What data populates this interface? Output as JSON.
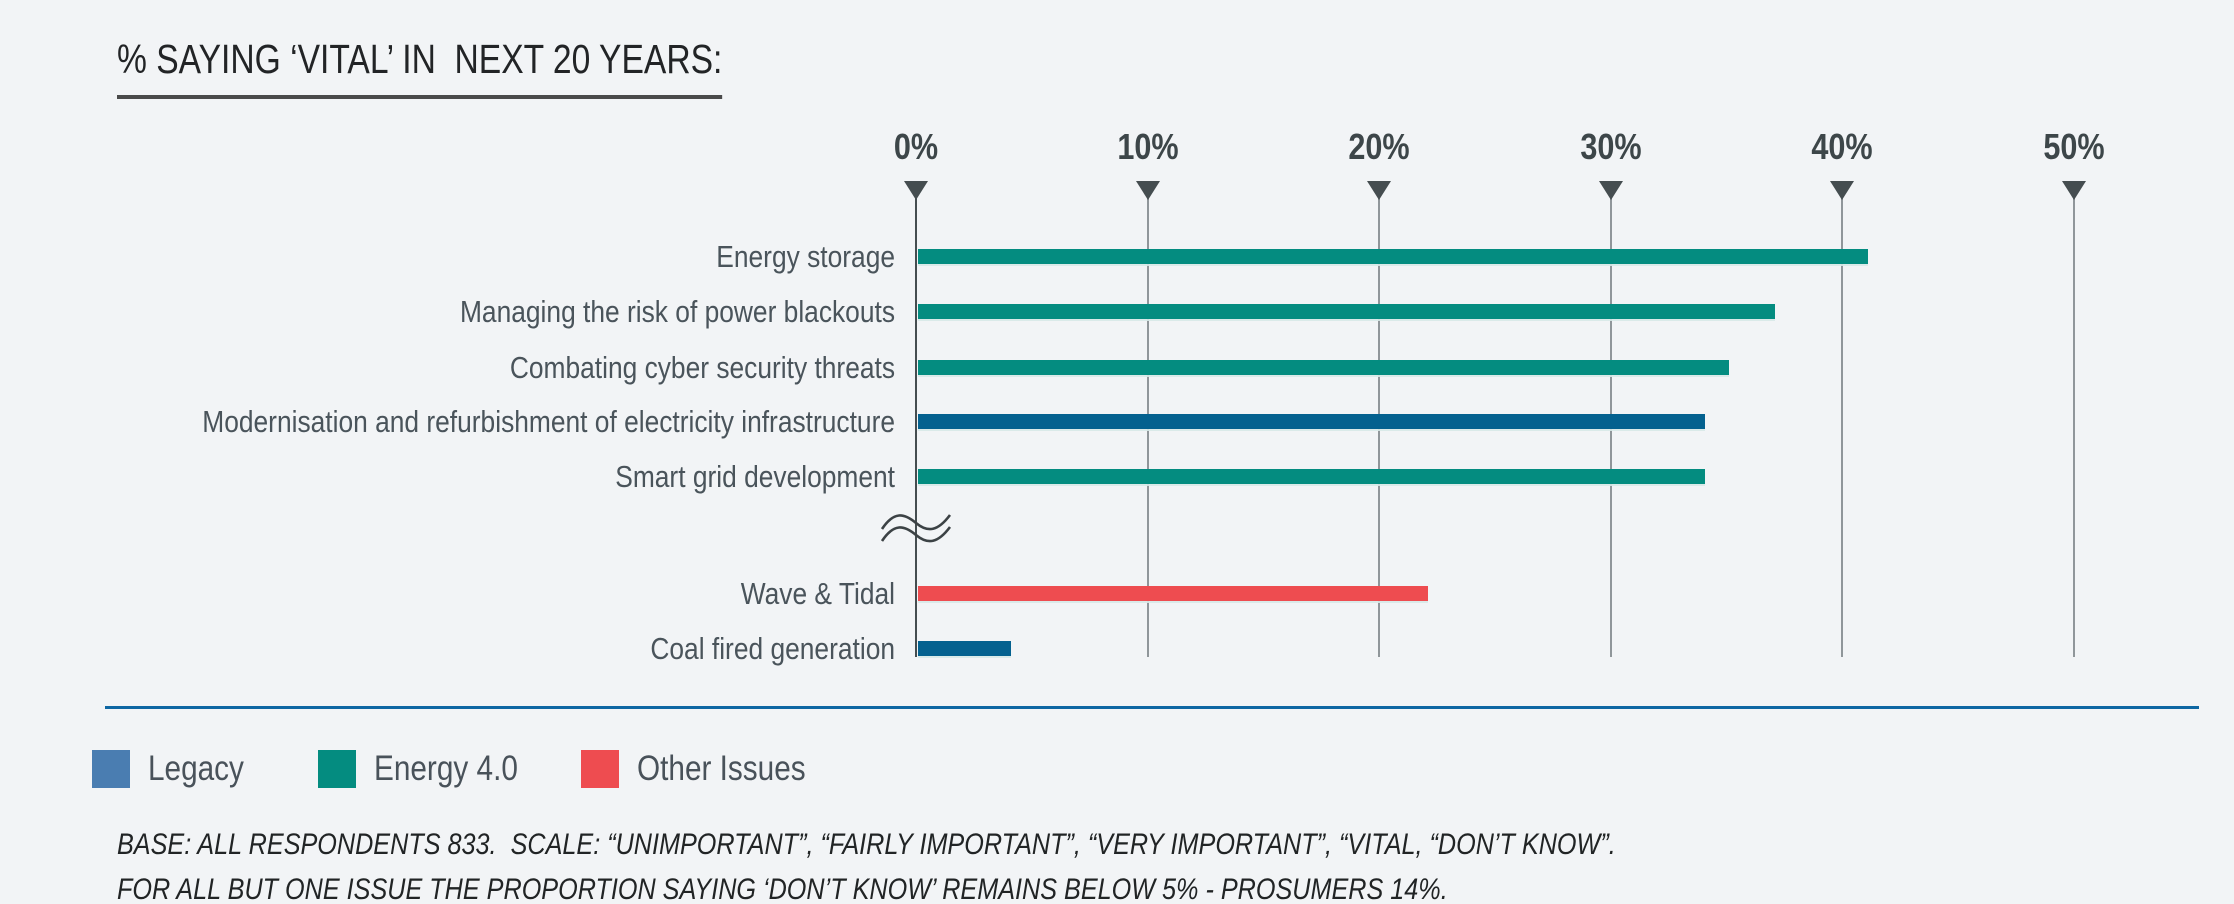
{
  "page": {
    "background": "#f2f4f6"
  },
  "chart_data": {
    "type": "bar",
    "orientation": "horizontal",
    "title": "% SAYING ‘VITAL’ IN  NEXT 20 YEARS:",
    "xlabel": "",
    "ylabel": "",
    "axis": {
      "tick_labels": [
        "0%",
        "10%",
        "20%",
        "30%",
        "40%",
        "50%"
      ],
      "tick_values": [
        0,
        10,
        20,
        30,
        40,
        50
      ],
      "range": [
        0,
        50
      ],
      "position": "top",
      "gridlines": true,
      "tick_marker": "down-triangle"
    },
    "axis_break": {
      "present": true,
      "between": [
        "Smart grid development",
        "Wave & Tidal"
      ]
    },
    "items": [
      {
        "label": "Energy storage",
        "value": 41,
        "group": "Energy 4.0"
      },
      {
        "label": "Managing the risk of power blackouts",
        "value": 37,
        "group": "Energy 4.0"
      },
      {
        "label": "Combating cyber security threats",
        "value": 35,
        "group": "Energy 4.0"
      },
      {
        "label": "Modernisation and refurbishment of electricity infrastructure",
        "value": 34,
        "group": "Legacy"
      },
      {
        "label": "Smart grid development",
        "value": 34,
        "group": "Energy 4.0"
      },
      {
        "label": "Wave & Tidal",
        "value": 22,
        "group": "Other Issues"
      },
      {
        "label": "Coal fired generation",
        "value": 4,
        "group": "Legacy"
      }
    ],
    "legend_position": "bottom"
  },
  "legend": {
    "entries": [
      {
        "label": "Legacy",
        "swatch_color": "#4a7db1"
      },
      {
        "label": "Energy 4.0",
        "swatch_color": "#048c80"
      },
      {
        "label": "Other Issues",
        "swatch_color": "#ee4c50"
      }
    ]
  },
  "footnotes": [
    "BASE: ALL RESPONDENTS 833.  SCALE: “UNIMPORTANT”, “FAIRLY IMPORTANT”, “VERY IMPORTANT”, “VITAL, “DON’T KNOW”.",
    "FOR ALL BUT ONE ISSUE THE PROPORTION SAYING ‘DON’T KNOW’ REMAINS BELOW 5% - PROSUMERS 14%."
  ],
  "colors": {
    "background": "#f2f4f6",
    "groups": {
      "Legacy": {
        "bar": "#04618f",
        "legend_swatch": "#4a7db1"
      },
      "Energy 4.0": {
        "bar": "#048c80",
        "legend_swatch": "#048c80"
      },
      "Other Issues": {
        "bar": "#ee4c50",
        "legend_swatch": "#ee4c50"
      }
    },
    "gridline": "#90969a",
    "axis_line": "#454d50",
    "tick_triangle": "#454d50",
    "tick_label_text": "#3d4649",
    "category_label_text": "#4a545b",
    "title_text": "#222426",
    "divider_line": "#0e67a3",
    "footnote_text": "#212425",
    "legend_label_text": "#49525a"
  }
}
